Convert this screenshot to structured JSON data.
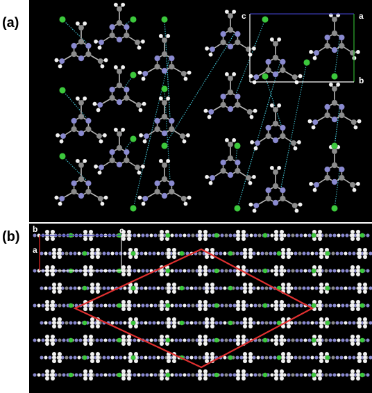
{
  "panels": [
    {
      "id": "a",
      "label": "(a)"
    },
    {
      "id": "b",
      "label": "(b)"
    }
  ],
  "panel_a": {
    "axis_labels": {
      "c": "c",
      "a": "a",
      "b": "b"
    }
  },
  "panel_b": {
    "axis_labels": {
      "b": "b",
      "c": "c",
      "a": "a"
    }
  },
  "colors": {
    "background": "#000000",
    "carbon": "#8c8c8c",
    "hydrogen": "#f2f2f2",
    "nitrogen": "#8a8ad0",
    "chloride": "#3cc83c",
    "hbond": "#40c0d0",
    "unit_cell_a": "#3a3ab0",
    "unit_cell_b": "#c02020",
    "unit_cell_c": "#30b030",
    "highlight": "#e03030"
  }
}
